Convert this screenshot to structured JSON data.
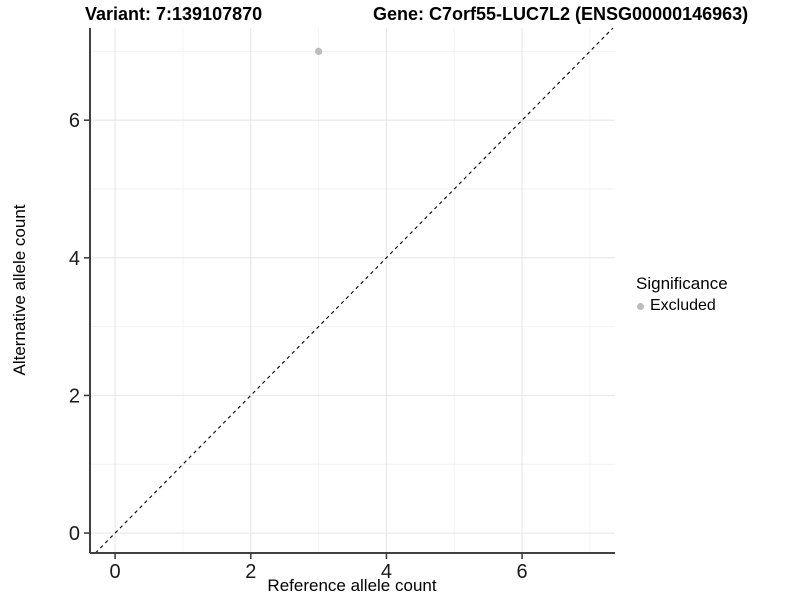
{
  "titles": {
    "variant": "Variant: 7:139107870",
    "gene": "Gene: C7orf55-LUC7L2 (ENSG00000146963)"
  },
  "chart_data": {
    "type": "scatter",
    "xlabel": "Reference allele count",
    "ylabel": "Alternative allele count",
    "xlim": [
      -0.37,
      7.37
    ],
    "ylim": [
      -0.29,
      7.34
    ],
    "x_ticks": [
      0,
      2,
      4,
      6
    ],
    "x_tick_labels": [
      "0",
      "2",
      "4",
      "6"
    ],
    "y_ticks": [
      0,
      2,
      4,
      6
    ],
    "y_tick_labels": [
      "0",
      "2",
      "4",
      "6"
    ],
    "x_minor_gridlines": [
      1,
      3,
      5,
      7
    ],
    "y_minor_gridlines": [
      1,
      3,
      5,
      7
    ],
    "grid": true,
    "points": [
      {
        "x": 3,
        "y": 7,
        "series": "Excluded"
      }
    ],
    "reference_line": {
      "style": "dashed",
      "slope": 1,
      "intercept": 0
    },
    "legend": {
      "position": "right",
      "title": "Significance",
      "items": [
        {
          "label": "Excluded",
          "color": "#bcbcbc"
        }
      ]
    },
    "colors": {
      "point": "#bcbcbc",
      "grid_major": "#e7e7e7",
      "grid_minor": "#f2f2f2",
      "axis_line": "#404040",
      "tick_text": "#1a1a1a",
      "reference_line": "#000000"
    }
  }
}
